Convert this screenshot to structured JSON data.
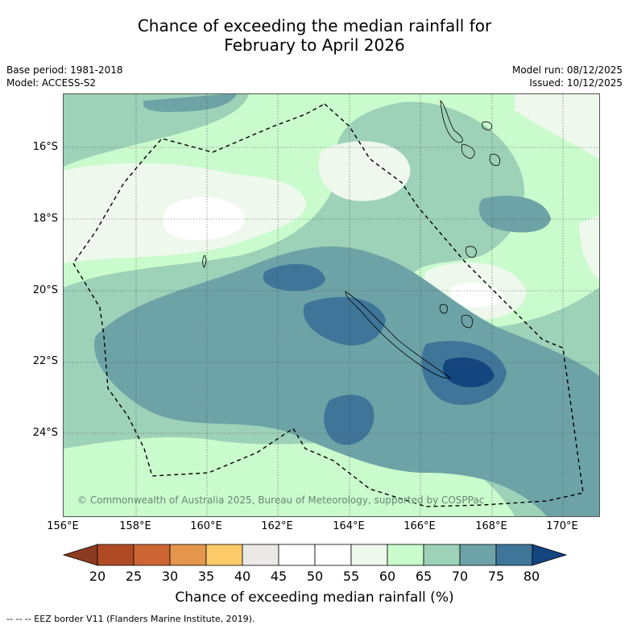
{
  "title": {
    "line1": "Chance of exceeding the median rainfall for",
    "line2": "February to April 2026"
  },
  "meta": {
    "base_period": "Base period: 1981-2018",
    "model": "Model: ACCESS-S2",
    "model_run": "Model run: 08/12/2025",
    "issued": "Issued: 10/12/2025"
  },
  "map": {
    "lat_labels": [
      "16°S",
      "18°S",
      "20°S",
      "22°S",
      "24°S"
    ],
    "lon_labels": [
      "156°E",
      "158°E",
      "160°E",
      "162°E",
      "164°E",
      "166°E",
      "168°E",
      "170°E"
    ],
    "copyright": "© Commonwealth of Australia 2025, Bureau of Meteorology, supported by COSPPac"
  },
  "colorbar": {
    "ticks": [
      "20",
      "25",
      "30",
      "35",
      "40",
      "45",
      "50",
      "55",
      "60",
      "65",
      "70",
      "75",
      "80"
    ],
    "colors": [
      "#8c3a22",
      "#b04a24",
      "#cd6633",
      "#e3964c",
      "#fecb6a",
      "#ebe9e6",
      "#ffffff",
      "#ffffff",
      "#eef8ec",
      "#c9fbcc",
      "#9dd1b8",
      "#6da3a6",
      "#3e7599",
      "#13457f"
    ],
    "label": "Chance of exceeding median rainfall (%)"
  },
  "legend": {
    "eez_line": "-- -- -- EEZ border V11 (Flanders Marine Institute, 2019)."
  }
}
